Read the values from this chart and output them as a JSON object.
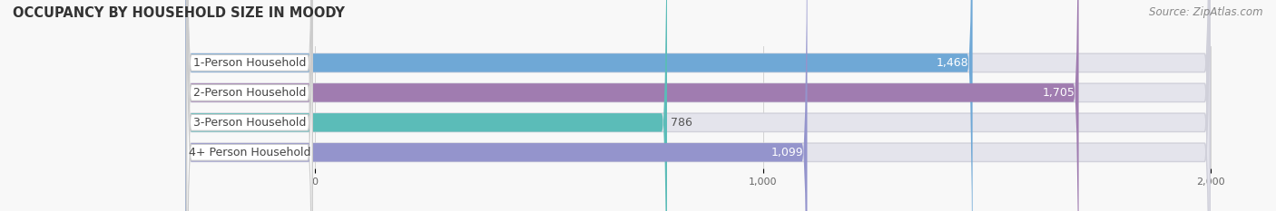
{
  "title": "OCCUPANCY BY HOUSEHOLD SIZE IN MOODY",
  "source": "Source: ZipAtlas.com",
  "categories": [
    "1-Person Household",
    "2-Person Household",
    "3-Person Household",
    "4+ Person Household"
  ],
  "values": [
    1468,
    1705,
    786,
    1099
  ],
  "bar_colors": [
    "#6fa8d6",
    "#a07cb0",
    "#5bbcb8",
    "#9494cc"
  ],
  "value_labels": [
    "1,468",
    "1,705",
    "786",
    "1,099"
  ],
  "background_color": "#f8f8f8",
  "bar_bg_color": "#e4e4ec",
  "label_bg_color": "#ffffff",
  "xmin": 0,
  "xmax": 2000,
  "xticks": [
    0,
    1000,
    2000
  ],
  "title_fontsize": 10.5,
  "source_fontsize": 8.5,
  "label_fontsize": 9,
  "value_fontsize": 9
}
